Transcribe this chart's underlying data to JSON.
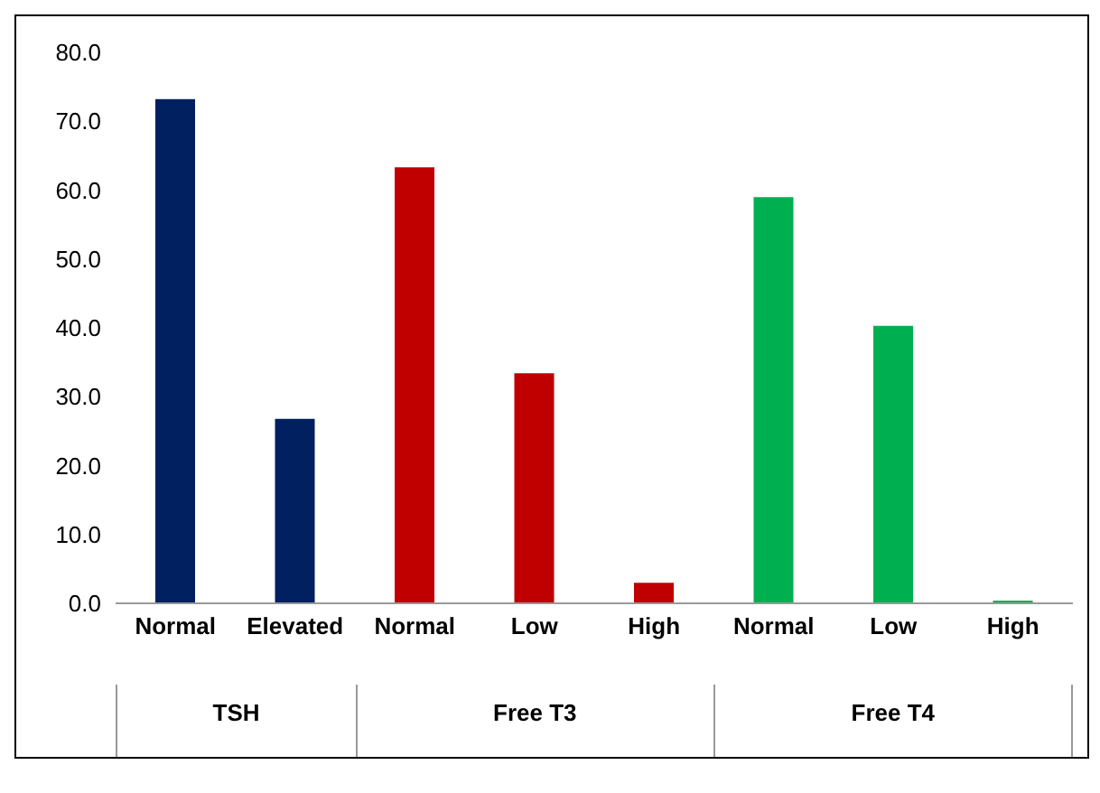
{
  "chart_data": {
    "type": "bar",
    "categories": [
      "Normal",
      "Elevated",
      "Normal",
      "Low",
      "High",
      "Normal",
      "Low",
      "High"
    ],
    "values": [
      73.2,
      26.8,
      63.3,
      33.4,
      3.0,
      59.0,
      40.3,
      0.4
    ],
    "colors": [
      "#002060",
      "#002060",
      "#c00000",
      "#c00000",
      "#c00000",
      "#00b050",
      "#00b050",
      "#00b050"
    ],
    "annotations": [
      "TSH",
      "Free T3",
      "Free T4"
    ],
    "ylim": [
      0,
      80
    ],
    "yticks": [
      {
        "value": 0,
        "label": "0.0"
      },
      {
        "value": 10,
        "label": "10.0"
      },
      {
        "value": 20,
        "label": "20.0"
      },
      {
        "value": 30,
        "label": "30.0"
      },
      {
        "value": 40,
        "label": "40.0"
      },
      {
        "value": 50,
        "label": "50.0"
      },
      {
        "value": 60,
        "label": "60.0"
      },
      {
        "value": 70,
        "label": "70.0"
      },
      {
        "value": 80,
        "label": "80.0"
      }
    ]
  }
}
